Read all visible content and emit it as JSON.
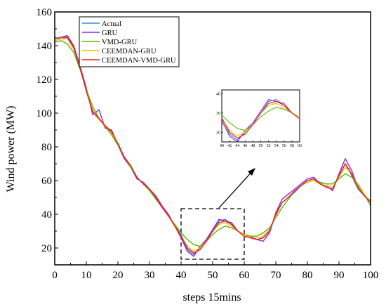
{
  "chart_data": {
    "type": "line",
    "xlabel": "steps 15mins",
    "ylabel": "Wind power (MW)",
    "xlim": [
      0,
      100
    ],
    "ylim": [
      10,
      160
    ],
    "x_ticks": [
      0,
      10,
      20,
      30,
      40,
      50,
      60,
      70,
      80,
      90,
      100
    ],
    "y_ticks": [
      20,
      40,
      60,
      80,
      100,
      120,
      140,
      160
    ],
    "x": [
      0,
      2,
      4,
      6,
      8,
      10,
      12,
      14,
      16,
      18,
      20,
      22,
      24,
      26,
      28,
      30,
      32,
      34,
      36,
      38,
      40,
      42,
      44,
      46,
      48,
      50,
      52,
      54,
      56,
      58,
      60,
      62,
      64,
      66,
      68,
      70,
      72,
      74,
      76,
      78,
      80,
      82,
      84,
      86,
      88,
      90,
      92,
      94,
      96,
      98,
      100
    ],
    "series": [
      {
        "name": "Actual",
        "color": "#3b8fd0",
        "values": [
          145,
          144,
          145,
          139,
          127,
          113,
          101,
          96,
          93,
          89,
          82,
          74,
          69,
          62,
          58,
          55,
          50,
          44,
          39,
          33,
          28,
          19,
          16,
          20,
          24,
          30,
          36,
          37,
          34,
          30,
          27,
          26,
          25,
          26,
          30,
          40,
          47,
          50,
          53,
          57,
          60,
          61,
          59,
          56,
          55,
          63,
          70,
          63,
          55,
          51,
          48
        ]
      },
      {
        "name": "GRU",
        "color": "#8b2be2",
        "values": [
          144,
          145,
          146,
          140,
          128,
          115,
          99,
          102,
          91,
          90,
          81,
          73,
          68,
          61,
          59,
          55,
          51,
          45,
          40,
          33,
          26,
          18,
          15,
          21,
          25,
          31,
          37,
          36,
          35,
          30,
          28,
          27,
          25,
          24,
          29,
          41,
          49,
          52,
          55,
          58,
          61,
          62,
          58,
          57,
          54,
          64,
          73,
          66,
          56,
          52,
          47
        ]
      },
      {
        "name": "VMD-GRU",
        "color": "#5cb800",
        "values": [
          142,
          143,
          141,
          136,
          126,
          114,
          104,
          97,
          92,
          87,
          81,
          74,
          68,
          62,
          58,
          54,
          49,
          44,
          39,
          34,
          29,
          25,
          22,
          21,
          24,
          28,
          31,
          33,
          32,
          30,
          28,
          27,
          27,
          29,
          32,
          38,
          44,
          49,
          54,
          57,
          59,
          60,
          59,
          58,
          58,
          61,
          64,
          62,
          58,
          52,
          45
        ]
      },
      {
        "name": "CEEMDAN-GRU",
        "color": "#f0c000",
        "values": [
          143,
          144,
          144,
          138,
          127,
          113,
          102,
          96,
          93,
          88,
          82,
          74,
          69,
          62,
          58,
          55,
          50,
          44,
          39,
          33,
          27,
          21,
          18,
          20,
          24,
          30,
          34,
          35,
          33,
          30,
          28,
          26,
          26,
          27,
          31,
          39,
          47,
          50,
          54,
          57,
          59,
          60,
          58,
          57,
          56,
          62,
          68,
          64,
          57,
          52,
          47
        ]
      },
      {
        "name": "CEEMDAN-VMD-GRU",
        "color": "#ee1c25",
        "values": [
          144,
          145,
          145,
          139,
          127,
          113,
          101,
          97,
          92,
          89,
          82,
          74,
          69,
          62,
          58,
          55,
          50,
          44,
          39,
          33,
          27,
          20,
          17,
          19,
          24,
          30,
          35,
          36,
          34,
          30,
          27,
          26,
          25,
          26,
          30,
          40,
          47,
          50,
          54,
          57,
          60,
          61,
          58,
          56,
          55,
          63,
          70,
          64,
          56,
          51,
          47
        ]
      }
    ],
    "inset": {
      "xlim": [
        40,
        60
      ],
      "ylim": [
        15,
        42
      ],
      "x_ticks": [
        40,
        42,
        44,
        46,
        48,
        50,
        52,
        54,
        56,
        58,
        60
      ],
      "y_ticks": [
        20,
        30,
        40
      ]
    },
    "legend": "top-left",
    "grid": false
  }
}
